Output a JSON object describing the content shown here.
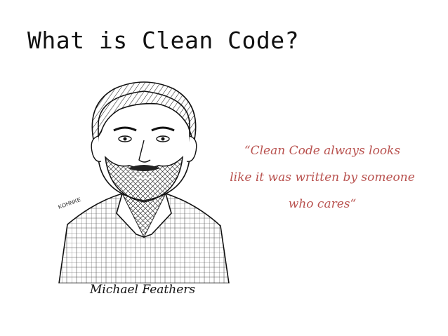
{
  "slide": {
    "title": "What is Clean Code?",
    "quote_lines": [
      "“Clean Code always looks",
      "like it was written by someone",
      "who cares“"
    ],
    "caption": "Michael Feathers",
    "artist_signature": "KOHNKE",
    "quote_color": "#b9524f"
  }
}
